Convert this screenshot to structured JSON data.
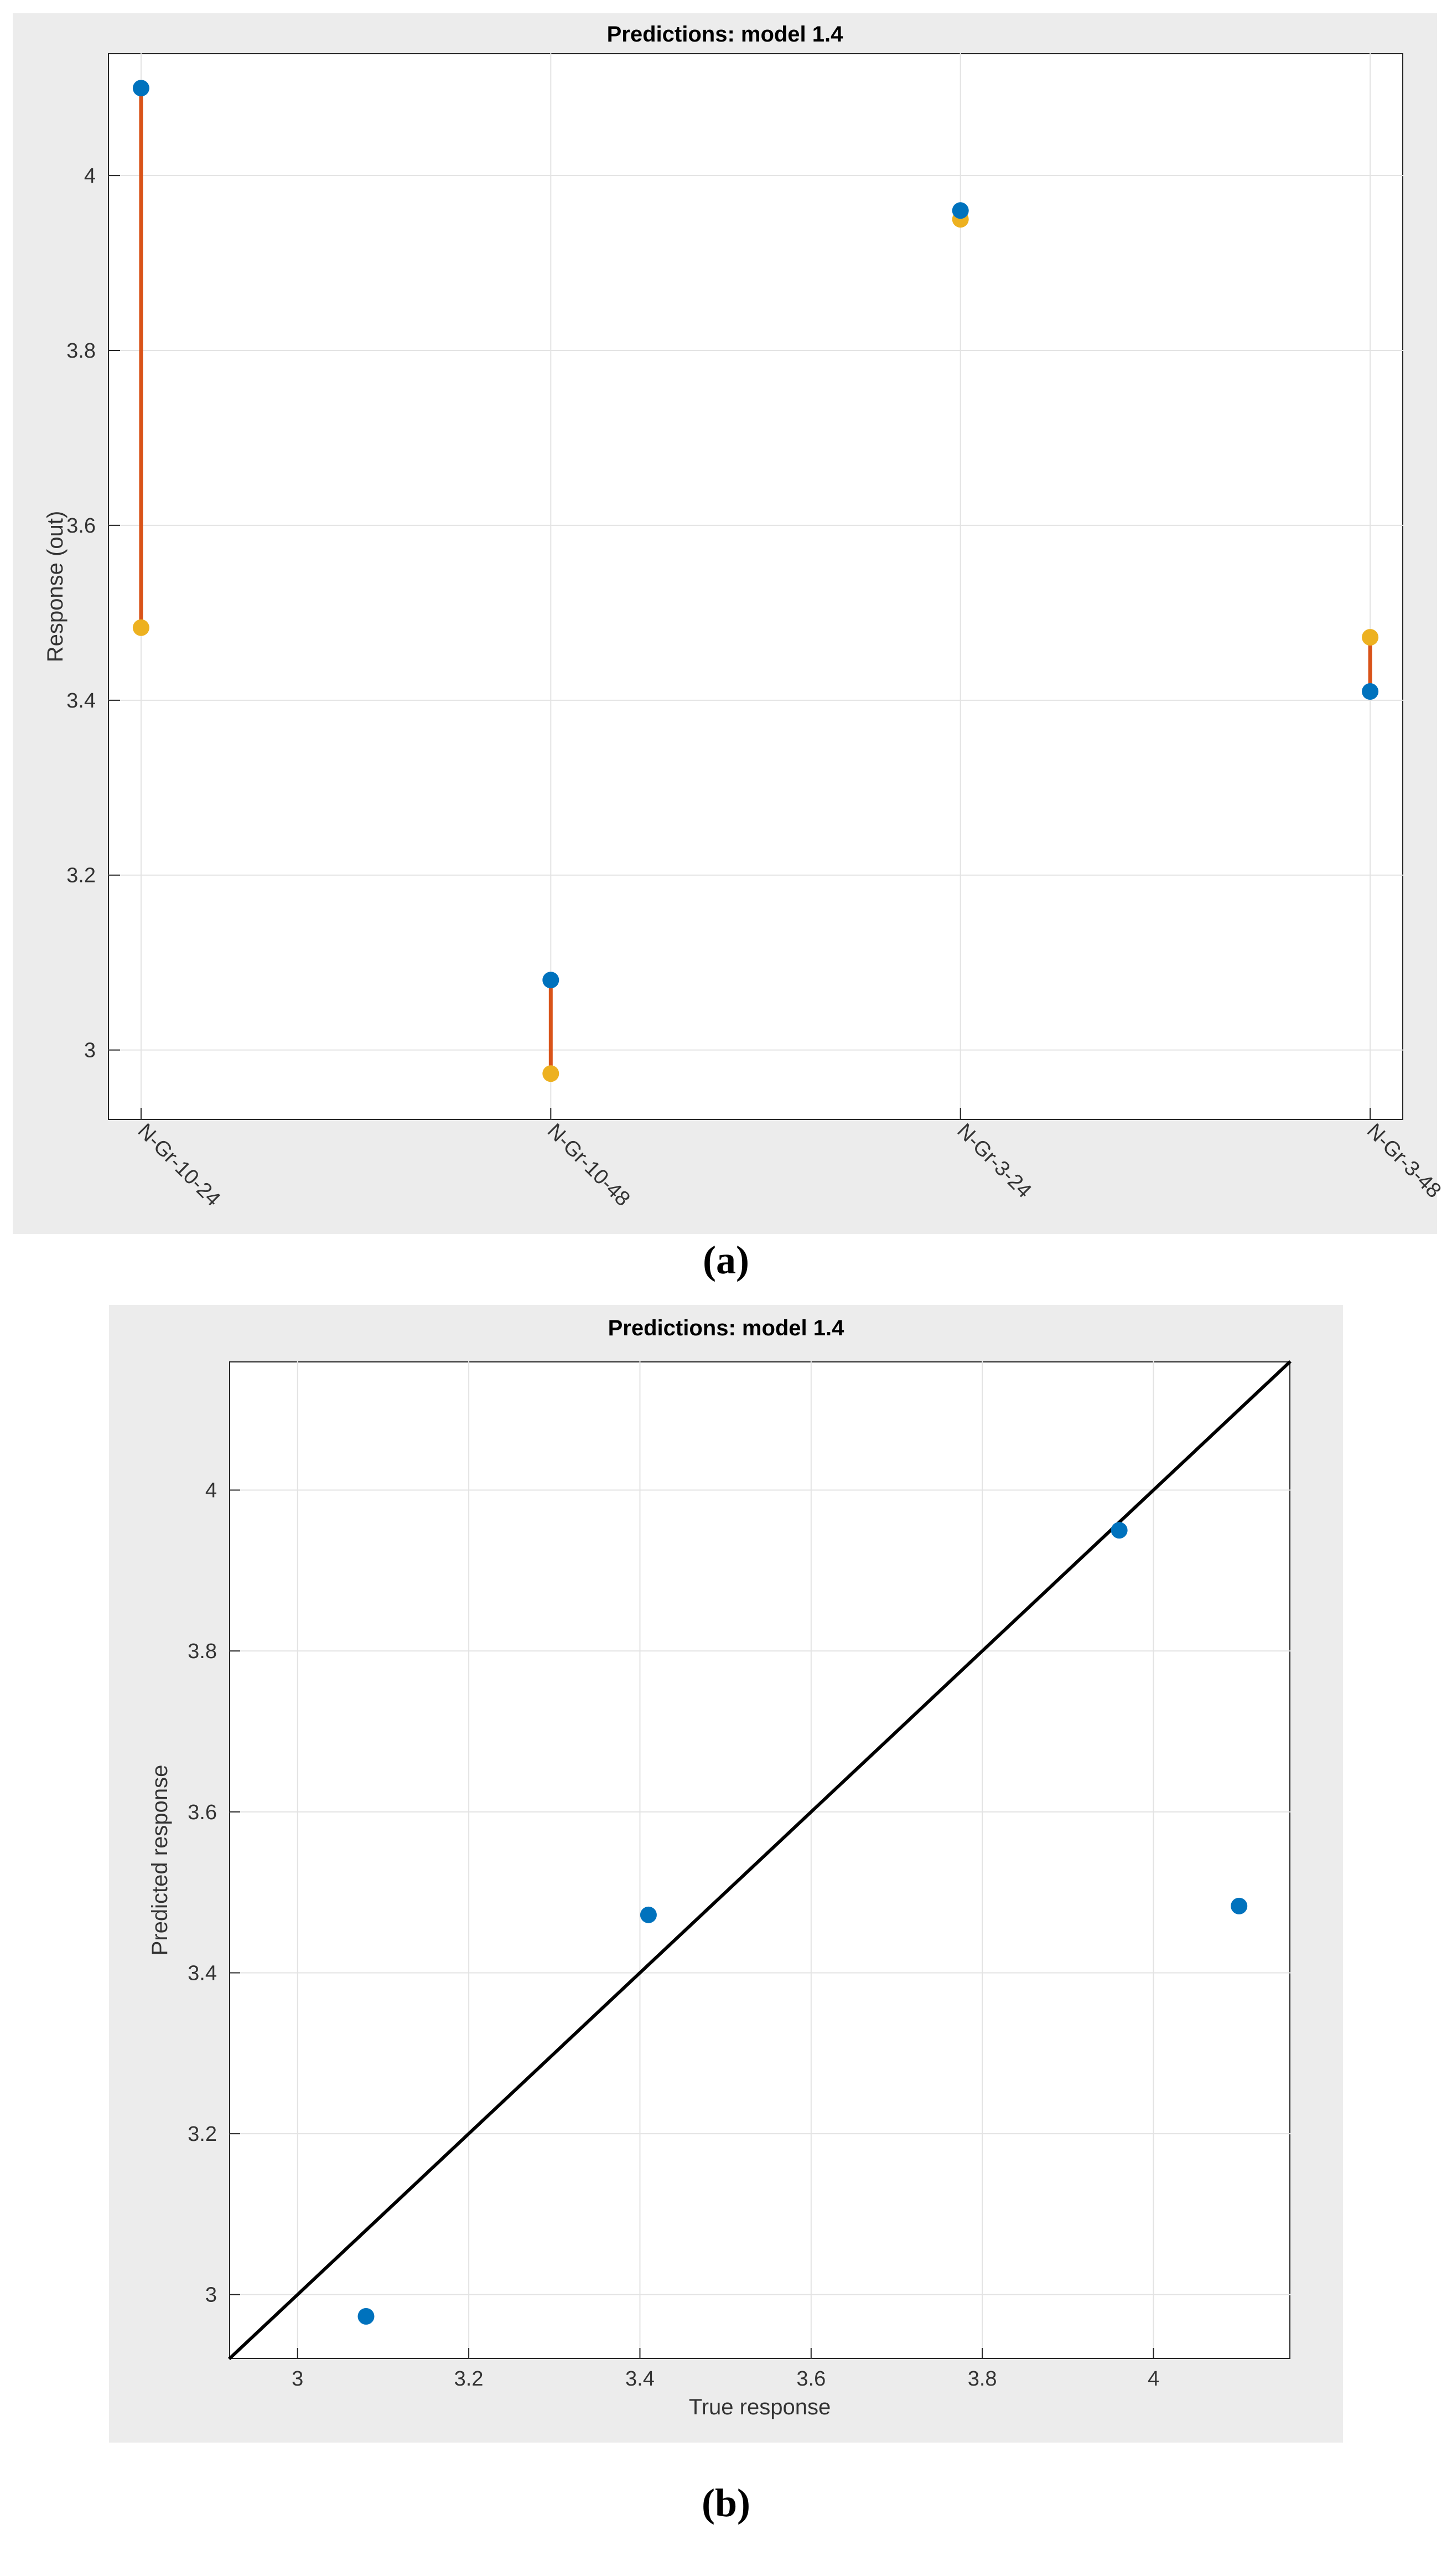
{
  "figure": {
    "panel_a_label": "(a)",
    "panel_b_label": "(b)"
  },
  "chart_data": [
    {
      "type": "scatter",
      "title": "Predictions: model 1.4",
      "xlabel": "",
      "ylabel": "Response (out)",
      "categories": [
        "N-Gr-10-24",
        "N-Gr-10-48",
        "N-Gr-3-24",
        "N-Gr-3-48"
      ],
      "ylim": [
        2.92,
        4.14
      ],
      "yticks": [
        3,
        3.2,
        3.4,
        3.6,
        3.8,
        4
      ],
      "ytick_labels": [
        "3",
        "3.2",
        "3.4",
        "3.6",
        "3.8",
        "4"
      ],
      "grid": true,
      "series": [
        {
          "role": "true",
          "values": [
            4.1,
            3.08,
            3.96,
            3.41
          ],
          "color": "#0072bd"
        },
        {
          "role": "predicted",
          "values": [
            3.483,
            2.973,
            3.95,
            3.472
          ],
          "color": "#edb120"
        }
      ],
      "error_line_color": "#d95319"
    },
    {
      "type": "scatter",
      "title": "Predictions: model 1.4",
      "xlabel": "True response",
      "ylabel": "Predicted response",
      "xlim": [
        2.92,
        4.16
      ],
      "ylim": [
        2.92,
        4.16
      ],
      "xticks": [
        3,
        3.2,
        3.4,
        3.6,
        3.8,
        4
      ],
      "xtick_labels": [
        "3",
        "3.2",
        "3.4",
        "3.6",
        "3.8",
        "4"
      ],
      "yticks": [
        3,
        3.2,
        3.4,
        3.6,
        3.8,
        4
      ],
      "ytick_labels": [
        "3",
        "3.2",
        "3.4",
        "3.6",
        "3.8",
        "4"
      ],
      "grid": true,
      "points": [
        {
          "x": 3.08,
          "y": 2.973
        },
        {
          "x": 3.41,
          "y": 3.472
        },
        {
          "x": 3.96,
          "y": 3.95
        },
        {
          "x": 4.1,
          "y": 3.483
        }
      ],
      "point_color": "#0072bd",
      "reference_line": "y = x",
      "reference_line_color": "#000000"
    }
  ]
}
